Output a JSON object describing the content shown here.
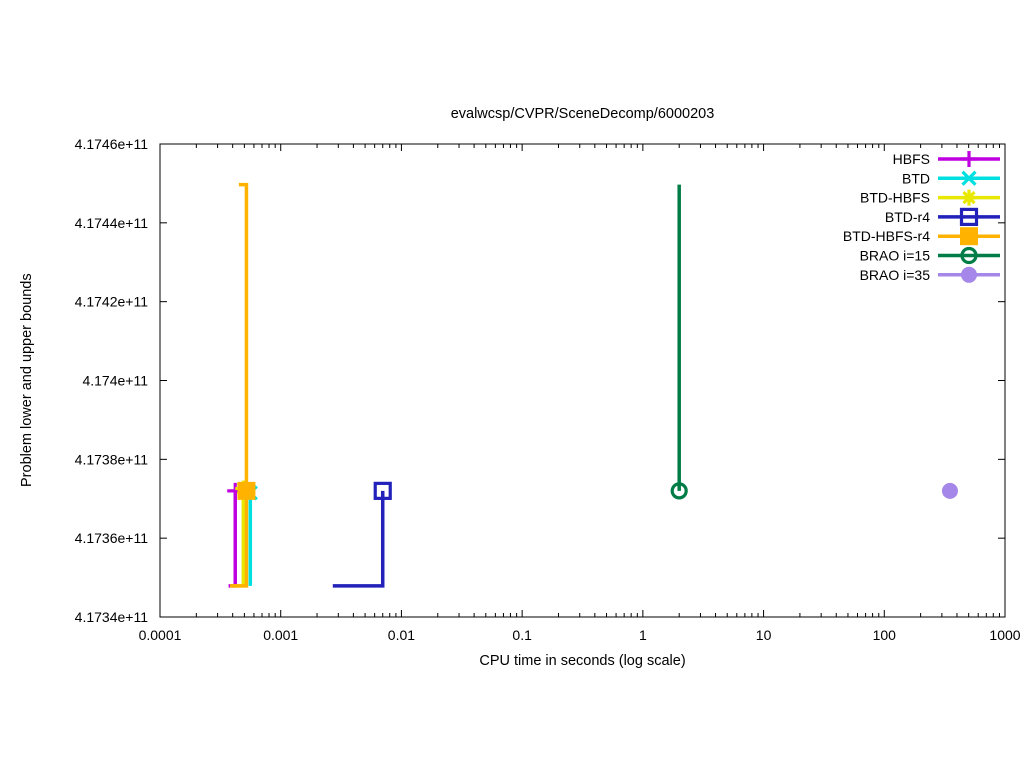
{
  "chart_data": {
    "type": "line",
    "title": "evalwcsp/CVPR/SceneDecomp/6000203",
    "xlabel": "CPU time in seconds (log scale)",
    "ylabel": "Problem lower and upper bounds",
    "x_scale": "log",
    "grid": false,
    "legend_position": "top-right-inside",
    "xlim": [
      0.0001,
      1000
    ],
    "ylim": [
      417340000000,
      417460000000
    ],
    "x_ticks": [
      0.0001,
      0.001,
      0.01,
      0.1,
      1,
      10,
      100,
      1000
    ],
    "x_tick_labels": [
      "0.0001",
      "0.001",
      "0.01",
      "0.1",
      "1",
      "10",
      "100",
      "1000"
    ],
    "y_ticks": [
      417340000000,
      417360000000,
      417380000000,
      417400000000,
      417420000000,
      417440000000,
      417460000000
    ],
    "y_tick_labels": [
      "4.1734e+11",
      "4.1736e+11",
      "4.1738e+11",
      "4.174e+11",
      "4.1742e+11",
      "4.1744e+11",
      "4.1746e+11"
    ],
    "series": [
      {
        "name": "HBFS",
        "color": "#bf00e0",
        "marker": "plus",
        "line": [
          [
            0.00037,
            417347900000
          ],
          [
            0.00042,
            417347900000
          ],
          [
            0.00042,
            417372000000
          ]
        ],
        "markers": [
          [
            0.00042,
            417372000000
          ]
        ]
      },
      {
        "name": "BTD",
        "color": "#00e0e0",
        "marker": "cross",
        "line": [
          [
            0.00056,
            417347900000
          ],
          [
            0.00056,
            417371500000
          ]
        ],
        "markers": [
          [
            0.00056,
            417371500000
          ]
        ]
      },
      {
        "name": "BTD-HBFS",
        "color": "#e8e800",
        "marker": "star",
        "line": [
          [
            0.0004,
            417347900000
          ],
          [
            0.00049,
            417347900000
          ],
          [
            0.00049,
            417372000000
          ]
        ],
        "markers": [
          [
            0.00049,
            417372600000
          ]
        ]
      },
      {
        "name": "BTD-r4",
        "color": "#2222bb",
        "marker": "square-open",
        "line": [
          [
            0.0027,
            417347900000
          ],
          [
            0.007,
            417347900000
          ],
          [
            0.007,
            417372000000
          ]
        ],
        "markers": [
          [
            0.007,
            417372000000
          ]
        ]
      },
      {
        "name": "BTD-HBFS-r4",
        "color": "#ffb300",
        "marker": "square-filled",
        "line": [
          [
            0.00045,
            417449700000
          ],
          [
            0.00052,
            417449700000
          ],
          [
            0.00052,
            417347900000
          ],
          [
            0.00038,
            417347900000
          ]
        ],
        "markers": [
          [
            0.00052,
            417372000000
          ]
        ]
      },
      {
        "name": "BRAO i=15",
        "color": "#007d46",
        "marker": "circle-open",
        "line": [
          [
            2.0,
            417449700000
          ],
          [
            2.0,
            417372000000
          ]
        ],
        "markers": [
          [
            2.0,
            417372000000
          ]
        ]
      },
      {
        "name": "BRAO i=35",
        "color": "#a487e8",
        "marker": "circle-filled",
        "line": [],
        "markers": [
          [
            350,
            417372000000
          ]
        ]
      }
    ]
  }
}
